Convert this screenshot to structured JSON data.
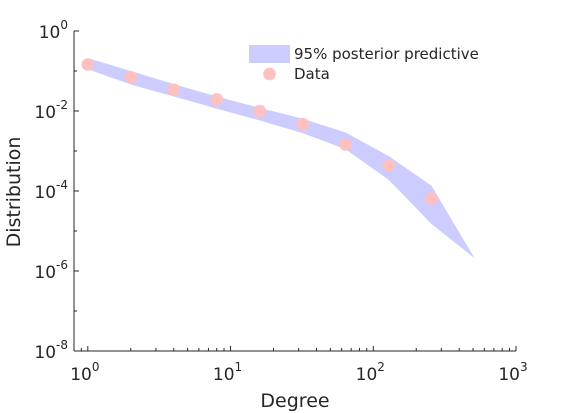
{
  "chart_data": {
    "type": "area",
    "xscale": "log",
    "yscale": "log",
    "xlabel": "Degree",
    "ylabel": "Distribution",
    "xlim": [
      0.8,
      1000
    ],
    "ylim": [
      1e-08,
      1
    ],
    "grid": false,
    "legend_placement": "top-right",
    "x_ticks": [
      {
        "base": "10",
        "exp": "0",
        "value": 1
      },
      {
        "base": "10",
        "exp": "1",
        "value": 10
      },
      {
        "base": "10",
        "exp": "2",
        "value": 100
      },
      {
        "base": "10",
        "exp": "3",
        "value": 1000
      }
    ],
    "y_ticks": [
      {
        "base": "10",
        "exp": "0",
        "value": 1
      },
      {
        "base": "10",
        "exp": "-2",
        "value": 0.01
      },
      {
        "base": "10",
        "exp": "-4",
        "value": 0.0001
      },
      {
        "base": "10",
        "exp": "-6",
        "value": 1e-06
      },
      {
        "base": "10",
        "exp": "-8",
        "value": 1e-08
      }
    ],
    "series": [
      {
        "name": "95% posterior predictive",
        "kind": "band",
        "color": "#ccccff",
        "x": [
          1,
          2,
          4,
          8,
          16,
          32,
          64,
          128,
          256,
          256,
          512
        ],
        "lower": [
          0.11,
          0.046,
          0.023,
          0.0115,
          0.0058,
          0.0028,
          0.0011,
          0.00019,
          1.5e-05,
          1.5e-05,
          2.1e-06
        ],
        "upper": [
          0.21,
          0.1,
          0.047,
          0.023,
          0.012,
          0.0064,
          0.0029,
          0.00075,
          0.000135,
          0.000135,
          2.1e-06
        ]
      },
      {
        "name": "Data",
        "kind": "scatter",
        "color": "#ffc0c0",
        "x": [
          1,
          2,
          4,
          8,
          16,
          32,
          64,
          128,
          256
        ],
        "y": [
          0.145,
          0.07,
          0.034,
          0.0195,
          0.01,
          0.0047,
          0.00145,
          0.00043,
          6.5e-05
        ]
      }
    ]
  }
}
